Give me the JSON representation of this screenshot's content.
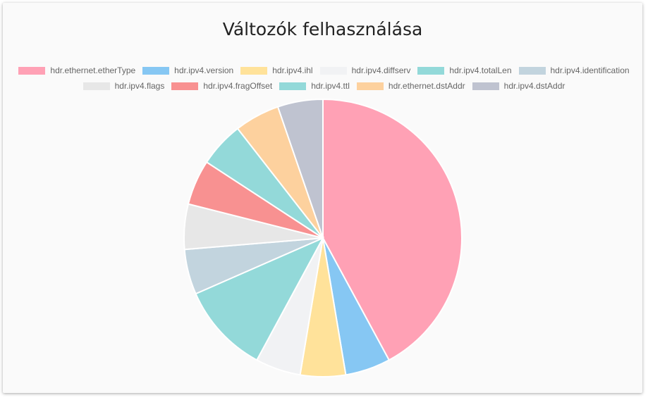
{
  "title": "Változók felhasználása",
  "chart_data": {
    "type": "pie",
    "title": "Változók felhasználása",
    "legend_position": "top",
    "slices": [
      {
        "label": "hdr.ethernet.etherType",
        "value": 8,
        "color": "#FFA1B5"
      },
      {
        "label": "hdr.ipv4.version",
        "value": 1,
        "color": "#86C7F3"
      },
      {
        "label": "hdr.ipv4.ihl",
        "value": 1,
        "color": "#FFE29A"
      },
      {
        "label": "hdr.ipv4.diffserv",
        "value": 1,
        "color": "#F1F2F4"
      },
      {
        "label": "hdr.ipv4.totalLen",
        "value": 2,
        "color": "#93D9D9"
      },
      {
        "label": "hdr.ipv4.identification",
        "value": 1,
        "color": "#C2D4DE"
      },
      {
        "label": "hdr.ipv4.flags",
        "value": 1,
        "color": "#E7E7E7"
      },
      {
        "label": "hdr.ipv4.fragOffset",
        "value": 1,
        "color": "#F89191"
      },
      {
        "label": "hdr.ipv4.ttl",
        "value": 1,
        "color": "#93D9D9"
      },
      {
        "label": "hdr.ethernet.dstAddr",
        "value": 1,
        "color": "#FDD19E"
      },
      {
        "label": "hdr.ipv4.dstAddr",
        "value": 1,
        "color": "#BFC3D0"
      }
    ]
  }
}
